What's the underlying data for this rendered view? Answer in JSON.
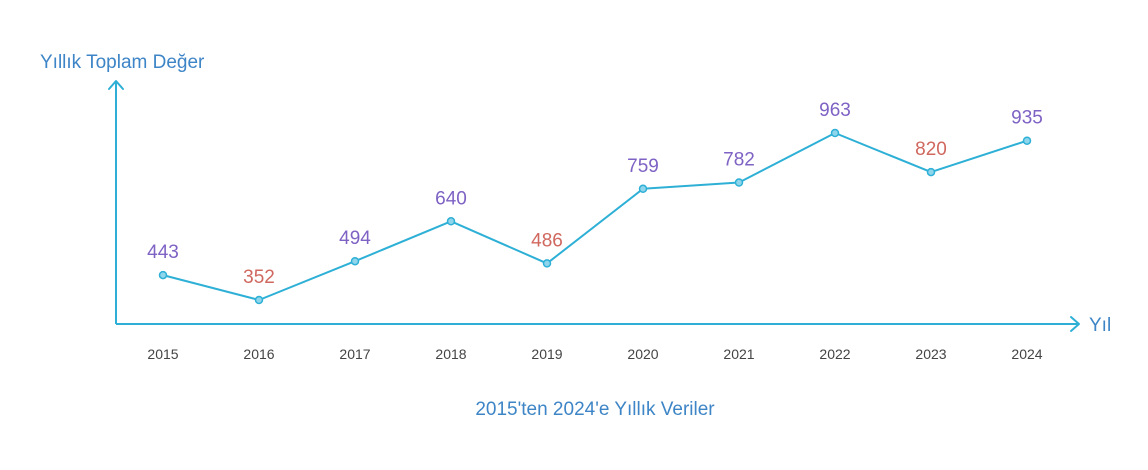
{
  "chart_data": {
    "type": "line",
    "title": "",
    "caption": "2015'ten 2024'e Yıllık Veriler",
    "ylabel": "Yıllık Toplam Değer",
    "xlabel": "Yıl",
    "categories": [
      "2015",
      "2016",
      "2017",
      "2018",
      "2019",
      "2020",
      "2021",
      "2022",
      "2023",
      "2024"
    ],
    "series": [
      {
        "values": [
          443,
          352,
          494,
          640,
          486,
          759,
          782,
          963,
          820,
          935
        ]
      }
    ],
    "data_labels": [
      "443",
      "352",
      "494",
      "640",
      "486",
      "759",
      "782",
      "963",
      "820",
      "935"
    ],
    "grid": false,
    "legend": "none",
    "colors": {
      "line": "#2eb0d6",
      "axis": "#2eb0d6",
      "label_increase": "#7e62c4",
      "label_decrease": "#d0685f",
      "axis_title": "#3d85c6",
      "tick": "#444444"
    }
  }
}
